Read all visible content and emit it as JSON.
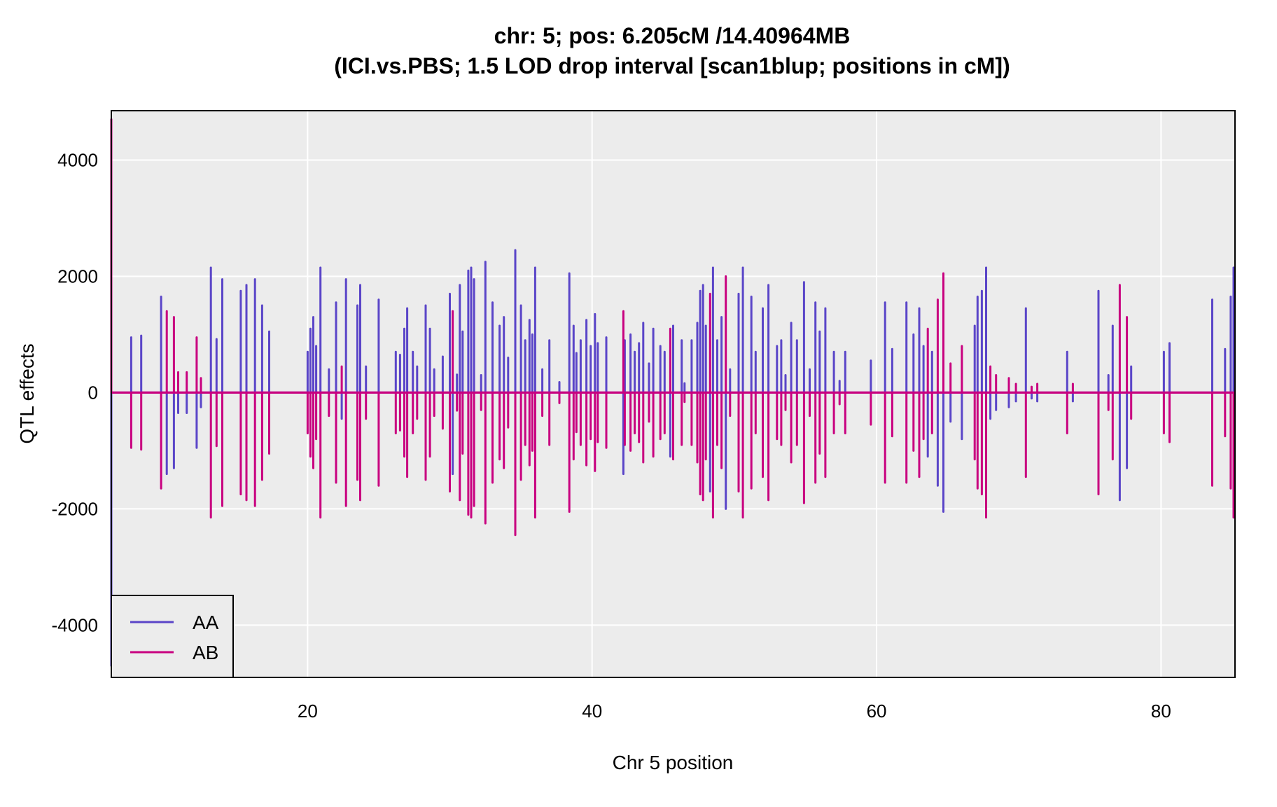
{
  "chart_data": {
    "type": "line",
    "title": "chr: 5; pos: 6.205cM /14.40964MB",
    "subtitle": "(ICI.vs.PBS; 1.5 LOD drop interval [scan1blup; positions in cM])",
    "xlabel": "Chr 5 position",
    "ylabel": "QTL effects",
    "xlim": [
      6.2,
      85.2
    ],
    "ylim": [
      -4900,
      4850
    ],
    "x_ticks": [
      20,
      40,
      60,
      80
    ],
    "y_ticks": [
      -4000,
      -2000,
      0,
      2000,
      4000
    ],
    "x_tick_labels": [
      "20",
      "40",
      "60",
      "80"
    ],
    "y_tick_labels": [
      "-4000",
      "-2000",
      "0",
      "2000",
      "4000"
    ],
    "grid": true,
    "legend_position": "bottom-left",
    "colors": {
      "AA": "#5a45c8",
      "AB": "#c8007f",
      "panel": "#ececec"
    },
    "series": [
      {
        "name": "AA",
        "color": "#5a45c8",
        "spikes": [
          [
            6.2,
            -4700
          ],
          [
            7.6,
            950
          ],
          [
            8.3,
            980
          ],
          [
            9.7,
            1650
          ],
          [
            10.1,
            -1400
          ],
          [
            10.6,
            -1300
          ],
          [
            10.9,
            -350
          ],
          [
            11.5,
            -350
          ],
          [
            12.2,
            -950
          ],
          [
            12.5,
            -250
          ],
          [
            13.2,
            2150
          ],
          [
            13.6,
            920
          ],
          [
            14.0,
            1950
          ],
          [
            15.3,
            1750
          ],
          [
            15.7,
            1850
          ],
          [
            16.3,
            1950
          ],
          [
            16.8,
            1500
          ],
          [
            17.3,
            1050
          ],
          [
            20.0,
            700
          ],
          [
            20.2,
            1100
          ],
          [
            20.4,
            1300
          ],
          [
            20.6,
            800
          ],
          [
            20.9,
            2150
          ],
          [
            21.5,
            400
          ],
          [
            22.0,
            1550
          ],
          [
            22.4,
            -450
          ],
          [
            22.7,
            1950
          ],
          [
            23.5,
            1500
          ],
          [
            23.7,
            1850
          ],
          [
            24.1,
            450
          ],
          [
            25.0,
            1600
          ],
          [
            26.2,
            700
          ],
          [
            26.5,
            650
          ],
          [
            26.8,
            1100
          ],
          [
            27.0,
            1450
          ],
          [
            27.4,
            700
          ],
          [
            27.7,
            450
          ],
          [
            28.3,
            1500
          ],
          [
            28.6,
            1100
          ],
          [
            28.9,
            400
          ],
          [
            29.5,
            620
          ],
          [
            30.0,
            1700
          ],
          [
            30.2,
            -1400
          ],
          [
            30.5,
            310
          ],
          [
            30.7,
            1850
          ],
          [
            30.9,
            1050
          ],
          [
            31.3,
            2100
          ],
          [
            31.5,
            2150
          ],
          [
            31.7,
            1950
          ],
          [
            32.2,
            300
          ],
          [
            32.5,
            2250
          ],
          [
            33.0,
            1550
          ],
          [
            33.5,
            1150
          ],
          [
            33.8,
            1300
          ],
          [
            34.1,
            600
          ],
          [
            34.6,
            2450
          ],
          [
            35.0,
            1500
          ],
          [
            35.3,
            900
          ],
          [
            35.6,
            1250
          ],
          [
            35.8,
            1000
          ],
          [
            36.0,
            2150
          ],
          [
            36.5,
            400
          ],
          [
            37.0,
            900
          ],
          [
            37.7,
            180
          ],
          [
            38.4,
            2050
          ],
          [
            38.7,
            1150
          ],
          [
            38.9,
            680
          ],
          [
            39.2,
            900
          ],
          [
            39.6,
            1250
          ],
          [
            39.9,
            800
          ],
          [
            40.2,
            1350
          ],
          [
            40.4,
            850
          ],
          [
            41.0,
            950
          ],
          [
            42.2,
            -1400
          ],
          [
            42.3,
            900
          ],
          [
            42.7,
            1000
          ],
          [
            43.0,
            700
          ],
          [
            43.3,
            850
          ],
          [
            43.6,
            1200
          ],
          [
            44.0,
            500
          ],
          [
            44.3,
            1100
          ],
          [
            44.8,
            800
          ],
          [
            45.1,
            700
          ],
          [
            45.5,
            -1100
          ],
          [
            45.7,
            1150
          ],
          [
            46.3,
            900
          ],
          [
            46.5,
            160
          ],
          [
            47.0,
            900
          ],
          [
            47.4,
            1200
          ],
          [
            47.6,
            1750
          ],
          [
            47.8,
            1850
          ],
          [
            48.0,
            1150
          ],
          [
            48.3,
            -1700
          ],
          [
            48.5,
            2150
          ],
          [
            48.8,
            900
          ],
          [
            49.1,
            1300
          ],
          [
            49.4,
            -2000
          ],
          [
            49.7,
            400
          ],
          [
            50.3,
            1700
          ],
          [
            50.6,
            2150
          ],
          [
            51.2,
            1650
          ],
          [
            51.5,
            700
          ],
          [
            52.0,
            1450
          ],
          [
            52.4,
            1850
          ],
          [
            53.0,
            800
          ],
          [
            53.3,
            900
          ],
          [
            53.6,
            300
          ],
          [
            54.0,
            1200
          ],
          [
            54.4,
            900
          ],
          [
            54.9,
            1900
          ],
          [
            55.3,
            400
          ],
          [
            55.7,
            1550
          ],
          [
            56.0,
            1050
          ],
          [
            56.4,
            1450
          ],
          [
            57.0,
            700
          ],
          [
            57.4,
            200
          ],
          [
            57.8,
            700
          ],
          [
            59.6,
            550
          ],
          [
            60.6,
            1550
          ],
          [
            61.1,
            750
          ],
          [
            62.1,
            1550
          ],
          [
            62.6,
            1000
          ],
          [
            63.0,
            1450
          ],
          [
            63.3,
            800
          ],
          [
            63.6,
            -1100
          ],
          [
            63.9,
            700
          ],
          [
            64.3,
            -1600
          ],
          [
            64.7,
            -2050
          ],
          [
            65.2,
            -500
          ],
          [
            66.0,
            -800
          ],
          [
            66.9,
            1150
          ],
          [
            67.1,
            1650
          ],
          [
            67.4,
            1750
          ],
          [
            67.7,
            2150
          ],
          [
            68.0,
            -450
          ],
          [
            68.4,
            -300
          ],
          [
            69.3,
            -250
          ],
          [
            69.8,
            -150
          ],
          [
            70.5,
            1450
          ],
          [
            70.9,
            -100
          ],
          [
            71.3,
            -150
          ],
          [
            73.4,
            700
          ],
          [
            73.8,
            -150
          ],
          [
            75.6,
            1750
          ],
          [
            76.3,
            300
          ],
          [
            76.6,
            1150
          ],
          [
            77.1,
            -1850
          ],
          [
            77.6,
            -1300
          ],
          [
            77.9,
            450
          ],
          [
            80.2,
            700
          ],
          [
            80.6,
            850
          ],
          [
            83.6,
            1600
          ],
          [
            84.5,
            750
          ],
          [
            84.9,
            1650
          ],
          [
            85.1,
            2150
          ]
        ]
      },
      {
        "name": "AB",
        "color": "#c8007f",
        "spikes": [
          [
            6.2,
            4700
          ],
          [
            7.6,
            -950
          ],
          [
            8.3,
            -980
          ],
          [
            9.7,
            -1650
          ],
          [
            10.1,
            1400
          ],
          [
            10.6,
            1300
          ],
          [
            10.9,
            350
          ],
          [
            11.5,
            350
          ],
          [
            12.2,
            950
          ],
          [
            12.5,
            250
          ],
          [
            13.2,
            -2150
          ],
          [
            13.6,
            -920
          ],
          [
            14.0,
            -1950
          ],
          [
            15.3,
            -1750
          ],
          [
            15.7,
            -1850
          ],
          [
            16.3,
            -1950
          ],
          [
            16.8,
            -1500
          ],
          [
            17.3,
            -1050
          ],
          [
            20.0,
            -700
          ],
          [
            20.2,
            -1100
          ],
          [
            20.4,
            -1300
          ],
          [
            20.6,
            -800
          ],
          [
            20.9,
            -2150
          ],
          [
            21.5,
            -400
          ],
          [
            22.0,
            -1550
          ],
          [
            22.4,
            450
          ],
          [
            22.7,
            -1950
          ],
          [
            23.5,
            -1500
          ],
          [
            23.7,
            -1850
          ],
          [
            24.1,
            -450
          ],
          [
            25.0,
            -1600
          ],
          [
            26.2,
            -700
          ],
          [
            26.5,
            -650
          ],
          [
            26.8,
            -1100
          ],
          [
            27.0,
            -1450
          ],
          [
            27.4,
            -700
          ],
          [
            27.7,
            -450
          ],
          [
            28.3,
            -1500
          ],
          [
            28.6,
            -1100
          ],
          [
            28.9,
            -400
          ],
          [
            29.5,
            -620
          ],
          [
            30.0,
            -1700
          ],
          [
            30.2,
            1400
          ],
          [
            30.5,
            -310
          ],
          [
            30.7,
            -1850
          ],
          [
            30.9,
            -1050
          ],
          [
            31.3,
            -2100
          ],
          [
            31.5,
            -2150
          ],
          [
            31.7,
            -1950
          ],
          [
            32.2,
            -300
          ],
          [
            32.5,
            -2250
          ],
          [
            33.0,
            -1550
          ],
          [
            33.5,
            -1150
          ],
          [
            33.8,
            -1300
          ],
          [
            34.1,
            -600
          ],
          [
            34.6,
            -2450
          ],
          [
            35.0,
            -1500
          ],
          [
            35.3,
            -900
          ],
          [
            35.6,
            -1250
          ],
          [
            35.8,
            -1000
          ],
          [
            36.0,
            -2150
          ],
          [
            36.5,
            -400
          ],
          [
            37.0,
            -900
          ],
          [
            37.7,
            -180
          ],
          [
            38.4,
            -2050
          ],
          [
            38.7,
            -1150
          ],
          [
            38.9,
            -680
          ],
          [
            39.2,
            -900
          ],
          [
            39.6,
            -1250
          ],
          [
            39.9,
            -800
          ],
          [
            40.2,
            -1350
          ],
          [
            40.4,
            -850
          ],
          [
            41.0,
            -950
          ],
          [
            42.2,
            1400
          ],
          [
            42.3,
            -900
          ],
          [
            42.7,
            -1000
          ],
          [
            43.0,
            -700
          ],
          [
            43.3,
            -850
          ],
          [
            43.6,
            -1200
          ],
          [
            44.0,
            -500
          ],
          [
            44.3,
            -1100
          ],
          [
            44.8,
            -800
          ],
          [
            45.1,
            -700
          ],
          [
            45.5,
            1100
          ],
          [
            45.7,
            -1150
          ],
          [
            46.3,
            -900
          ],
          [
            46.5,
            -160
          ],
          [
            47.0,
            -900
          ],
          [
            47.4,
            -1200
          ],
          [
            47.6,
            -1750
          ],
          [
            47.8,
            -1850
          ],
          [
            48.0,
            -1150
          ],
          [
            48.3,
            1700
          ],
          [
            48.5,
            -2150
          ],
          [
            48.8,
            -900
          ],
          [
            49.1,
            -1300
          ],
          [
            49.4,
            2000
          ],
          [
            49.7,
            -400
          ],
          [
            50.3,
            -1700
          ],
          [
            50.6,
            -2150
          ],
          [
            51.2,
            -1650
          ],
          [
            51.5,
            -700
          ],
          [
            52.0,
            -1450
          ],
          [
            52.4,
            -1850
          ],
          [
            53.0,
            -800
          ],
          [
            53.3,
            -900
          ],
          [
            53.6,
            -300
          ],
          [
            54.0,
            -1200
          ],
          [
            54.4,
            -900
          ],
          [
            54.9,
            -1900
          ],
          [
            55.3,
            -400
          ],
          [
            55.7,
            -1550
          ],
          [
            56.0,
            -1050
          ],
          [
            56.4,
            -1450
          ],
          [
            57.0,
            -700
          ],
          [
            57.4,
            -200
          ],
          [
            57.8,
            -700
          ],
          [
            59.6,
            -550
          ],
          [
            60.6,
            -1550
          ],
          [
            61.1,
            -750
          ],
          [
            62.1,
            -1550
          ],
          [
            62.6,
            -1000
          ],
          [
            63.0,
            -1450
          ],
          [
            63.3,
            -800
          ],
          [
            63.6,
            1100
          ],
          [
            63.9,
            -700
          ],
          [
            64.3,
            1600
          ],
          [
            64.7,
            2050
          ],
          [
            65.2,
            500
          ],
          [
            66.0,
            800
          ],
          [
            66.9,
            -1150
          ],
          [
            67.1,
            -1650
          ],
          [
            67.4,
            -1750
          ],
          [
            67.7,
            -2150
          ],
          [
            68.0,
            450
          ],
          [
            68.4,
            300
          ],
          [
            69.3,
            250
          ],
          [
            69.8,
            150
          ],
          [
            70.5,
            -1450
          ],
          [
            70.9,
            100
          ],
          [
            71.3,
            150
          ],
          [
            73.4,
            -700
          ],
          [
            73.8,
            150
          ],
          [
            75.6,
            -1750
          ],
          [
            76.3,
            -300
          ],
          [
            76.6,
            -1150
          ],
          [
            77.1,
            1850
          ],
          [
            77.6,
            1300
          ],
          [
            77.9,
            -450
          ],
          [
            80.2,
            -700
          ],
          [
            80.6,
            -850
          ],
          [
            83.6,
            -1600
          ],
          [
            84.5,
            -750
          ],
          [
            84.9,
            -1650
          ],
          [
            85.1,
            -2150
          ]
        ]
      }
    ]
  }
}
